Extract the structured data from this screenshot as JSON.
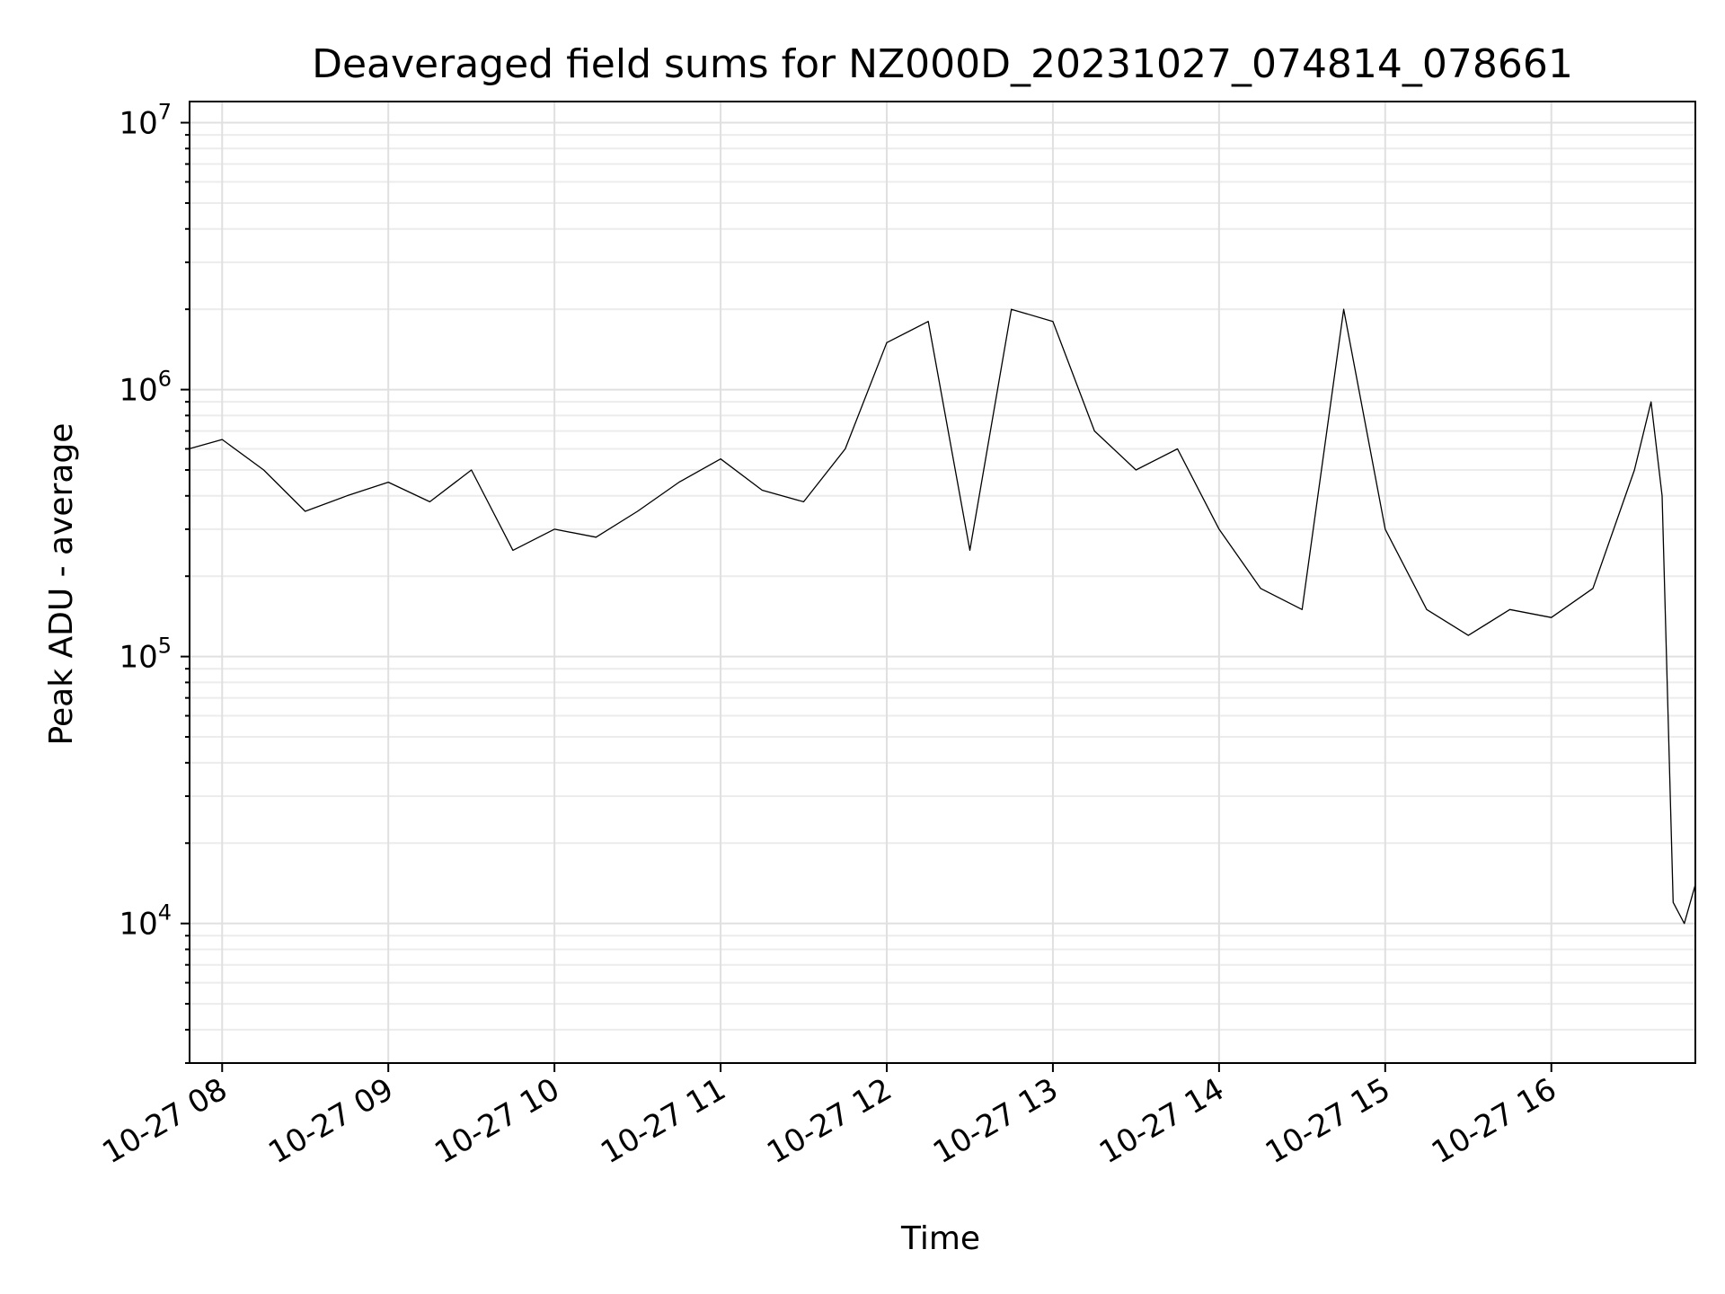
{
  "chart_data": {
    "type": "line",
    "title": "Deaveraged field sums for NZ000D_20231027_074814_078661",
    "xlabel": "Time",
    "ylabel": "Peak ADU - average",
    "yscale": "log",
    "ylim": [
      3000,
      12000000
    ],
    "xlim": [
      "2023-10-27 07:48:14",
      "2023-10-27 16:52:00"
    ],
    "grid": true,
    "legend": "none",
    "x_ticks": [
      {
        "value": "2023-10-27 08:00",
        "label": "10-27 08"
      },
      {
        "value": "2023-10-27 09:00",
        "label": "10-27 09"
      },
      {
        "value": "2023-10-27 10:00",
        "label": "10-27 10"
      },
      {
        "value": "2023-10-27 11:00",
        "label": "10-27 11"
      },
      {
        "value": "2023-10-27 12:00",
        "label": "10-27 12"
      },
      {
        "value": "2023-10-27 13:00",
        "label": "10-27 13"
      },
      {
        "value": "2023-10-27 14:00",
        "label": "10-27 14"
      },
      {
        "value": "2023-10-27 15:00",
        "label": "10-27 15"
      },
      {
        "value": "2023-10-27 16:00",
        "label": "10-27 16"
      }
    ],
    "y_ticks": [
      {
        "value": 10000,
        "base": "10",
        "exp": "4"
      },
      {
        "value": 100000,
        "base": "10",
        "exp": "5"
      },
      {
        "value": 1000000,
        "base": "10",
        "exp": "6"
      },
      {
        "value": 10000000,
        "base": "10",
        "exp": "7"
      }
    ],
    "line_color": "#000000",
    "series": [
      {
        "x": [
          "2023-10-27 07:48",
          "2023-10-27 08:00",
          "2023-10-27 08:15",
          "2023-10-27 08:30",
          "2023-10-27 08:45",
          "2023-10-27 09:00",
          "2023-10-27 09:15",
          "2023-10-27 09:30",
          "2023-10-27 09:45",
          "2023-10-27 10:00",
          "2023-10-27 10:15",
          "2023-10-27 10:30",
          "2023-10-27 10:45",
          "2023-10-27 11:00",
          "2023-10-27 11:15",
          "2023-10-27 11:30",
          "2023-10-27 11:45",
          "2023-10-27 12:00",
          "2023-10-27 12:15",
          "2023-10-27 12:30",
          "2023-10-27 12:45",
          "2023-10-27 13:00",
          "2023-10-27 13:15",
          "2023-10-27 13:30",
          "2023-10-27 13:45",
          "2023-10-27 14:00",
          "2023-10-27 14:15",
          "2023-10-27 14:30",
          "2023-10-27 14:45",
          "2023-10-27 15:00",
          "2023-10-27 15:15",
          "2023-10-27 15:30",
          "2023-10-27 15:45",
          "2023-10-27 16:00",
          "2023-10-27 16:15",
          "2023-10-27 16:30",
          "2023-10-27 16:36",
          "2023-10-27 16:40",
          "2023-10-27 16:44",
          "2023-10-27 16:48",
          "2023-10-27 16:52"
        ],
        "y": [
          600000,
          650000,
          500000,
          350000,
          400000,
          450000,
          380000,
          500000,
          250000,
          300000,
          280000,
          350000,
          450000,
          550000,
          420000,
          380000,
          600000,
          1500000,
          1800000,
          250000,
          2000000,
          1800000,
          700000,
          500000,
          600000,
          300000,
          180000,
          150000,
          2000000,
          300000,
          150000,
          120000,
          150000,
          140000,
          180000,
          500000,
          900000,
          400000,
          12000,
          10000,
          14000
        ]
      }
    ]
  }
}
